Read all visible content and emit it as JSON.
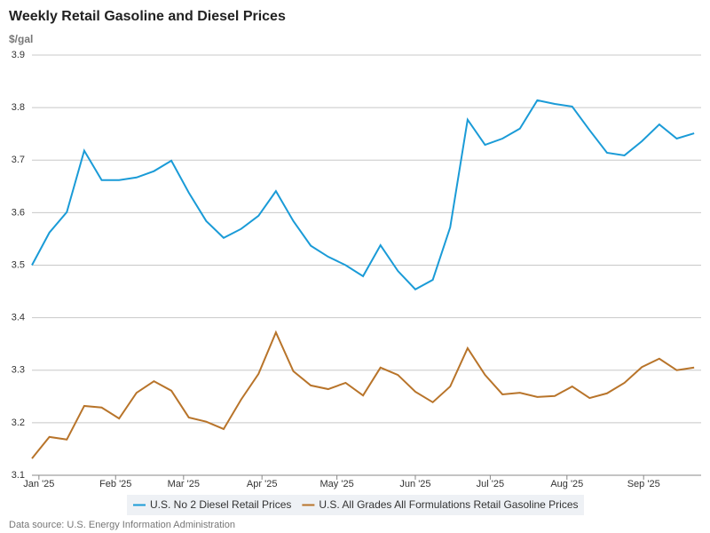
{
  "chart_data": {
    "type": "line",
    "title": "Weekly Retail Gasoline and Diesel Prices",
    "y_label": "$/gal",
    "source": "Data source: U.S. Energy Information Administration",
    "series": [
      {
        "name": "U.S. No 2 Diesel Retail Prices",
        "color": "#1a9bd7",
        "values": [
          3.5,
          3.562,
          3.601,
          3.718,
          3.662,
          3.662,
          3.667,
          3.679,
          3.699,
          3.638,
          3.584,
          3.552,
          3.569,
          3.594,
          3.641,
          3.584,
          3.537,
          3.516,
          3.5,
          3.479,
          3.538,
          3.489,
          3.454,
          3.472,
          3.572,
          3.777,
          3.729,
          3.741,
          3.76,
          3.814,
          3.807,
          3.802,
          3.757,
          3.714,
          3.709,
          3.736,
          3.768,
          3.741,
          3.751
        ]
      },
      {
        "name": "U.S. All Grades All Formulations Retail Gasoline Prices",
        "color": "#b8742a",
        "values": [
          3.132,
          3.173,
          3.168,
          3.232,
          3.229,
          3.208,
          3.257,
          3.279,
          3.261,
          3.21,
          3.202,
          3.188,
          3.244,
          3.293,
          3.372,
          3.298,
          3.271,
          3.264,
          3.276,
          3.252,
          3.305,
          3.291,
          3.259,
          3.239,
          3.269,
          3.342,
          3.291,
          3.254,
          3.257,
          3.249,
          3.251,
          3.269,
          3.247,
          3.256,
          3.276,
          3.306,
          3.322,
          3.3,
          3.305
        ]
      }
    ],
    "xlim": [
      0,
      38.4
    ],
    "xticks": [
      {
        "value": 0.4,
        "label": "Jan '25"
      },
      {
        "value": 4.8,
        "label": "Feb '25"
      },
      {
        "value": 8.7,
        "label": "Mar '25"
      },
      {
        "value": 13.2,
        "label": "Apr '25"
      },
      {
        "value": 17.5,
        "label": "May '25"
      },
      {
        "value": 22.0,
        "label": "Jun '25"
      },
      {
        "value": 26.3,
        "label": "Jul '25"
      },
      {
        "value": 30.7,
        "label": "Aug '25"
      },
      {
        "value": 35.1,
        "label": "Sep '25"
      }
    ],
    "ylim": [
      3.1,
      3.9
    ],
    "yticks": [
      3.1,
      3.2,
      3.3,
      3.4,
      3.5,
      3.6,
      3.7,
      3.8,
      3.9
    ],
    "grid": true
  }
}
